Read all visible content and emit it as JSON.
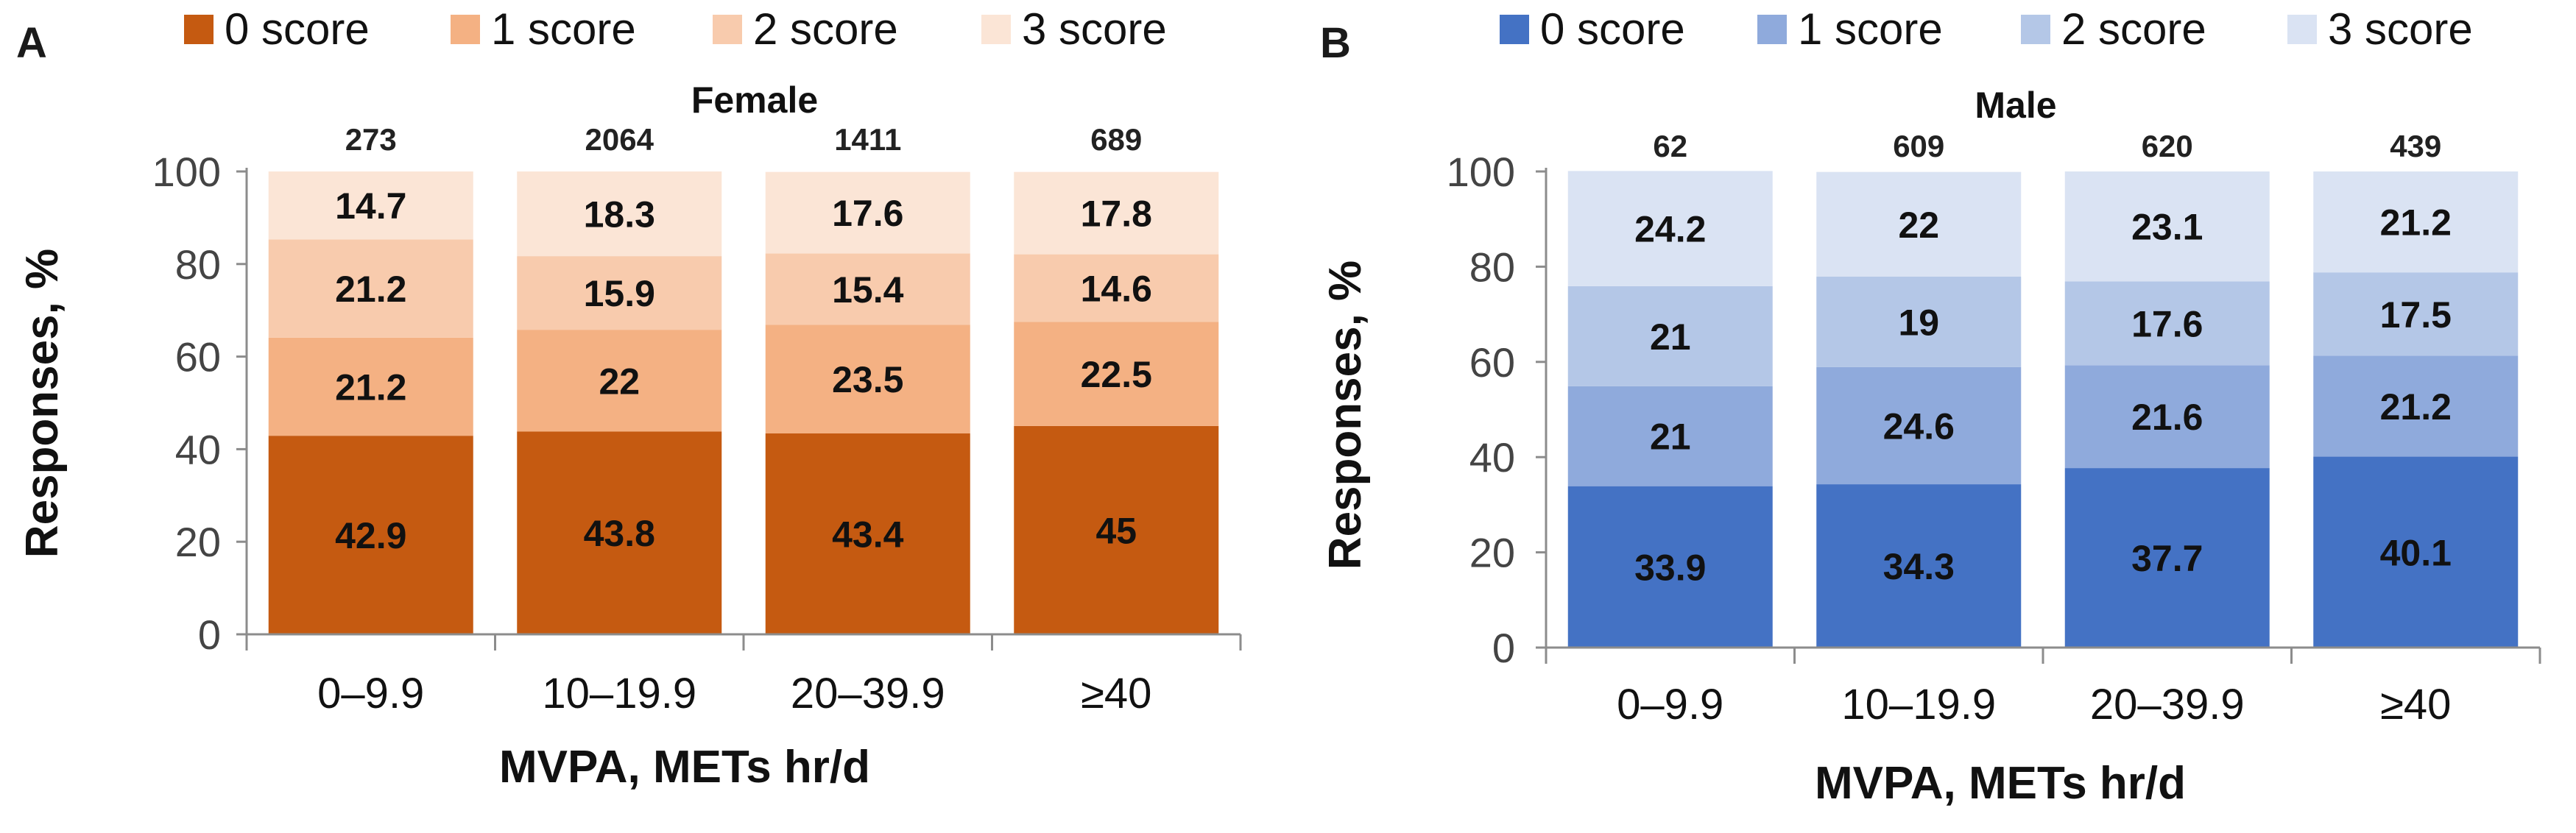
{
  "figure": {
    "panel_letters": [
      "A",
      "B"
    ]
  },
  "chart_data": [
    {
      "type": "bar",
      "stacked": true,
      "panel": "A",
      "title": "Female",
      "xlabel": "MVPA, METs hr/d",
      "ylabel": "Responses, %",
      "ylim": [
        0,
        100
      ],
      "yticks": [
        "0",
        "20",
        "40",
        "60",
        "80",
        "100"
      ],
      "categories": [
        "0–9.9",
        "10–19.9",
        "20–39.9",
        "≥40"
      ],
      "n": [
        "273",
        "2064",
        "1411",
        "689"
      ],
      "series": [
        {
          "name": "0 score",
          "color": "#C55A11",
          "values": [
            42.9,
            43.8,
            43.4,
            45
          ]
        },
        {
          "name": "1 score",
          "color": "#F4B183",
          "values": [
            21.2,
            22,
            23.5,
            22.5
          ]
        },
        {
          "name": "2 score",
          "color": "#F8CBAD",
          "values": [
            21.2,
            15.9,
            15.4,
            14.6
          ]
        },
        {
          "name": "3 score",
          "color": "#FBE5D6",
          "values": [
            14.7,
            18.3,
            17.6,
            17.8
          ]
        }
      ]
    },
    {
      "type": "bar",
      "stacked": true,
      "panel": "B",
      "title": "Male",
      "xlabel": "MVPA, METs hr/d",
      "ylabel": "Responses, %",
      "ylim": [
        0,
        100
      ],
      "yticks": [
        "0",
        "20",
        "40",
        "60",
        "80",
        "100"
      ],
      "categories": [
        "0–9.9",
        "10–19.9",
        "20–39.9",
        "≥40"
      ],
      "n": [
        "62",
        "609",
        "620",
        "439"
      ],
      "series": [
        {
          "name": "0 score",
          "color": "#4472C4",
          "values": [
            33.9,
            34.3,
            37.7,
            40.1
          ]
        },
        {
          "name": "1 score",
          "color": "#8FAADC",
          "values": [
            21,
            24.6,
            21.6,
            21.2
          ]
        },
        {
          "name": "2 score",
          "color": "#B4C7E7",
          "values": [
            21,
            19,
            17.6,
            17.5
          ]
        },
        {
          "name": "3 score",
          "color": "#DAE3F3",
          "values": [
            24.2,
            22,
            23.1,
            21.2
          ]
        }
      ]
    }
  ]
}
